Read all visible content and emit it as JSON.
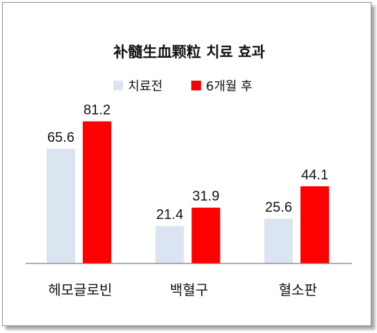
{
  "chart_data": {
    "type": "bar",
    "title": "补髓生血颗粒 치료 효과",
    "categories": [
      "헤모글로빈",
      "백혈구",
      "혈소판"
    ],
    "series": [
      {
        "name": "치료전",
        "color": "#dbe5f1",
        "values": [
          65.6,
          21.4,
          25.6
        ]
      },
      {
        "name": "6개월 후",
        "color": "#ff0000",
        "values": [
          81.2,
          31.9,
          44.1
        ]
      }
    ],
    "ylim": [
      0,
      85
    ],
    "grid": false,
    "legend": "top-center",
    "xlabel": "",
    "ylabel": ""
  }
}
